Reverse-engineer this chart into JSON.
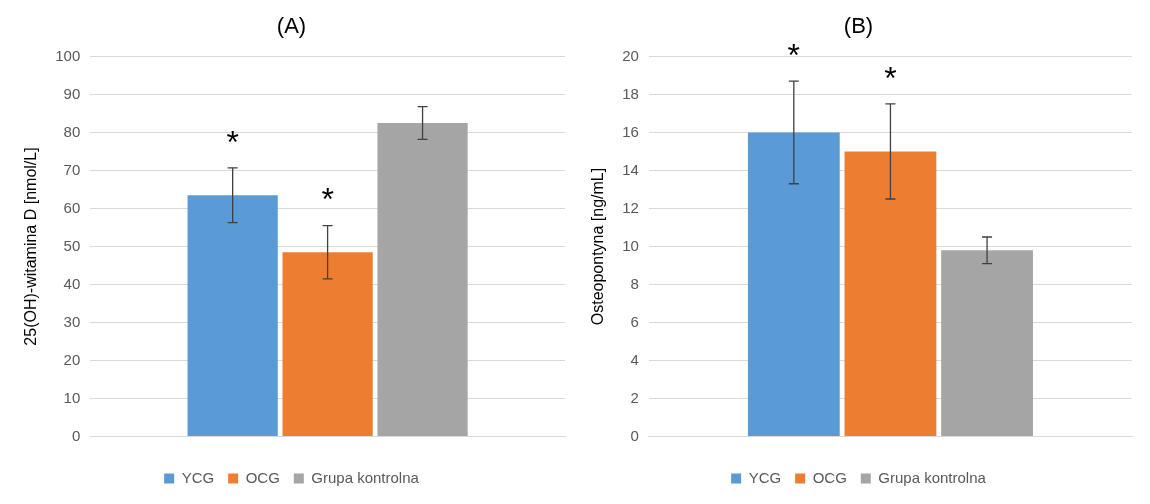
{
  "chart_data": [
    {
      "type": "bar",
      "title": "(A)",
      "ylabel": "25(OH)-witamina D [nmol/L]",
      "categories": [
        null
      ],
      "ylim": [
        0,
        100
      ],
      "yticks": [
        0,
        10,
        20,
        30,
        40,
        50,
        60,
        70,
        80,
        90,
        100
      ],
      "grid": "y",
      "legend": "bottom",
      "series": [
        {
          "name": "YCG",
          "color": "#5b9bd5",
          "values": [
            63.5
          ],
          "errors": [
            7.2
          ]
        },
        {
          "name": "OCG",
          "color": "#ed7d31",
          "values": [
            48.5
          ],
          "errors": [
            7
          ]
        },
        {
          "name": "Grupa kontrolna",
          "color": "#a5a5a5",
          "values": [
            82.5
          ],
          "errors": [
            4.3
          ]
        }
      ],
      "annotations": [
        "*",
        "*"
      ]
    },
    {
      "type": "bar",
      "title": "(B)",
      "ylabel": "Osteopontyna [ng/mL]",
      "categories": [
        null
      ],
      "ylim": [
        0,
        20
      ],
      "yticks": [
        0,
        2,
        4,
        6,
        8,
        10,
        12,
        14,
        16,
        18,
        20
      ],
      "grid": "y",
      "legend": "bottom",
      "series": [
        {
          "name": "YCG",
          "color": "#5b9bd5",
          "values": [
            16
          ],
          "errors": [
            2.7
          ]
        },
        {
          "name": "OCG",
          "color": "#ed7d31",
          "values": [
            15
          ],
          "errors": [
            2.5
          ]
        },
        {
          "name": "Grupa kontrolna",
          "color": "#a5a5a5",
          "values": [
            9.8
          ],
          "errors": [
            0.7
          ]
        }
      ],
      "annotations": [
        "*",
        "*"
      ]
    }
  ]
}
